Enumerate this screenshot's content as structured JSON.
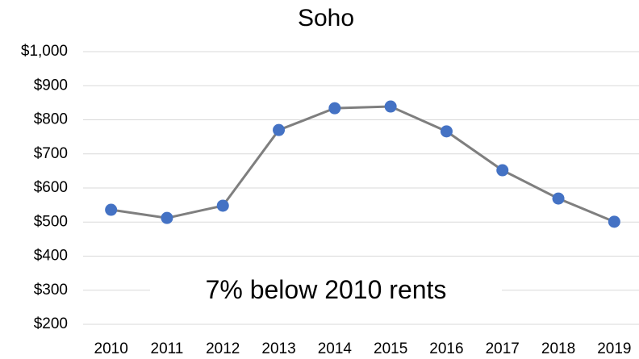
{
  "chart_data": {
    "type": "line",
    "title": "Soho",
    "categories": [
      "2010",
      "2011",
      "2012",
      "2013",
      "2014",
      "2015",
      "2016",
      "2017",
      "2018",
      "2019"
    ],
    "series": [
      {
        "name": "Soho",
        "color": "#7f7f7f",
        "marker_color": "#4472c4",
        "values": [
          536,
          512,
          548,
          770,
          834,
          839,
          766,
          652,
          569,
          501
        ]
      }
    ],
    "ylim": [
      200,
      1000
    ],
    "yticks": [
      {
        "value": 200,
        "label": "$200"
      },
      {
        "value": 300,
        "label": "$300"
      },
      {
        "value": 400,
        "label": "$400"
      },
      {
        "value": 500,
        "label": "$500"
      },
      {
        "value": 600,
        "label": "$600"
      },
      {
        "value": 700,
        "label": "$700"
      },
      {
        "value": 800,
        "label": "$800"
      },
      {
        "value": 900,
        "label": "$900"
      },
      {
        "value": 1000,
        "label": "$1,000"
      }
    ],
    "grid": true,
    "annotation": "7% below 2010 rents"
  }
}
